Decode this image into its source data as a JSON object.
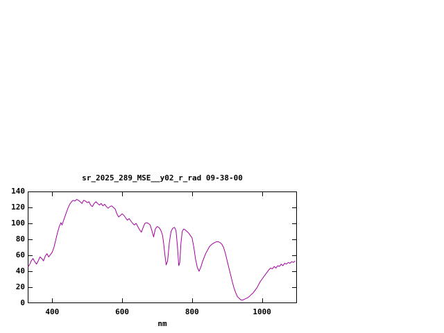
{
  "page": {
    "background": "#ffffff"
  },
  "chart_data": {
    "type": "line",
    "title": "sr_2025_289_MSE__y02_r_rad 09-38-00",
    "xlabel": "nm",
    "ylabel": "",
    "xlim": [
      330,
      1100
    ],
    "ylim": [
      0,
      140
    ],
    "xticks": [
      400,
      600,
      800,
      1000
    ],
    "yticks": [
      0,
      20,
      40,
      60,
      80,
      100,
      120,
      140
    ],
    "grid": false,
    "legend": "none",
    "line_color": "#a000a0",
    "border_color": "#000000",
    "series": [
      {
        "name": "sr_2025_289_MSE__y02_r_rad",
        "points": [
          [
            330,
            45
          ],
          [
            335,
            48
          ],
          [
            340,
            53
          ],
          [
            345,
            56
          ],
          [
            350,
            52
          ],
          [
            355,
            49
          ],
          [
            360,
            53
          ],
          [
            365,
            58
          ],
          [
            370,
            56
          ],
          [
            375,
            53
          ],
          [
            380,
            59
          ],
          [
            385,
            62
          ],
          [
            390,
            58
          ],
          [
            395,
            61
          ],
          [
            400,
            64
          ],
          [
            405,
            70
          ],
          [
            410,
            79
          ],
          [
            415,
            88
          ],
          [
            420,
            96
          ],
          [
            425,
            101
          ],
          [
            428,
            98
          ],
          [
            432,
            103
          ],
          [
            436,
            108
          ],
          [
            440,
            113
          ],
          [
            445,
            119
          ],
          [
            450,
            124
          ],
          [
            455,
            127
          ],
          [
            460,
            129
          ],
          [
            465,
            128
          ],
          [
            470,
            130
          ],
          [
            475,
            129
          ],
          [
            480,
            127
          ],
          [
            485,
            125
          ],
          [
            490,
            129
          ],
          [
            495,
            128
          ],
          [
            500,
            126
          ],
          [
            505,
            127
          ],
          [
            510,
            123
          ],
          [
            515,
            121
          ],
          [
            520,
            125
          ],
          [
            525,
            127
          ],
          [
            530,
            125
          ],
          [
            535,
            123
          ],
          [
            540,
            125
          ],
          [
            545,
            122
          ],
          [
            550,
            124
          ],
          [
            555,
            121
          ],
          [
            560,
            119
          ],
          [
            565,
            121
          ],
          [
            570,
            122
          ],
          [
            575,
            120
          ],
          [
            580,
            118
          ],
          [
            585,
            112
          ],
          [
            590,
            108
          ],
          [
            595,
            110
          ],
          [
            600,
            112
          ],
          [
            605,
            110
          ],
          [
            610,
            107
          ],
          [
            615,
            104
          ],
          [
            620,
            106
          ],
          [
            625,
            103
          ],
          [
            630,
            100
          ],
          [
            635,
            98
          ],
          [
            640,
            100
          ],
          [
            645,
            96
          ],
          [
            650,
            92
          ],
          [
            655,
            89
          ],
          [
            660,
            95
          ],
          [
            665,
            100
          ],
          [
            670,
            101
          ],
          [
            675,
            100
          ],
          [
            680,
            98
          ],
          [
            685,
            91
          ],
          [
            690,
            83
          ],
          [
            695,
            93
          ],
          [
            700,
            96
          ],
          [
            705,
            95
          ],
          [
            710,
            92
          ],
          [
            715,
            86
          ],
          [
            718,
            78
          ],
          [
            722,
            62
          ],
          [
            726,
            48
          ],
          [
            730,
            53
          ],
          [
            735,
            76
          ],
          [
            740,
            90
          ],
          [
            745,
            94
          ],
          [
            750,
            95
          ],
          [
            754,
            91
          ],
          [
            758,
            72
          ],
          [
            762,
            47
          ],
          [
            765,
            51
          ],
          [
            768,
            74
          ],
          [
            772,
            90
          ],
          [
            776,
            93
          ],
          [
            780,
            92
          ],
          [
            785,
            90
          ],
          [
            790,
            88
          ],
          [
            795,
            85
          ],
          [
            800,
            82
          ],
          [
            805,
            70
          ],
          [
            810,
            55
          ],
          [
            815,
            45
          ],
          [
            820,
            40
          ],
          [
            825,
            45
          ],
          [
            830,
            52
          ],
          [
            835,
            58
          ],
          [
            840,
            63
          ],
          [
            845,
            67
          ],
          [
            850,
            71
          ],
          [
            855,
            73
          ],
          [
            860,
            75
          ],
          [
            865,
            76
          ],
          [
            870,
            77
          ],
          [
            875,
            77
          ],
          [
            880,
            76
          ],
          [
            885,
            74
          ],
          [
            890,
            70
          ],
          [
            895,
            63
          ],
          [
            900,
            54
          ],
          [
            905,
            45
          ],
          [
            910,
            36
          ],
          [
            915,
            27
          ],
          [
            920,
            19
          ],
          [
            925,
            13
          ],
          [
            930,
            8
          ],
          [
            935,
            6
          ],
          [
            940,
            4
          ],
          [
            945,
            4
          ],
          [
            950,
            5
          ],
          [
            955,
            6
          ],
          [
            960,
            7
          ],
          [
            965,
            9
          ],
          [
            970,
            11
          ],
          [
            975,
            13
          ],
          [
            980,
            16
          ],
          [
            985,
            19
          ],
          [
            990,
            23
          ],
          [
            995,
            27
          ],
          [
            1000,
            30
          ],
          [
            1005,
            33
          ],
          [
            1010,
            36
          ],
          [
            1015,
            39
          ],
          [
            1020,
            42
          ],
          [
            1025,
            44
          ],
          [
            1030,
            43
          ],
          [
            1035,
            46
          ],
          [
            1040,
            44
          ],
          [
            1045,
            47
          ],
          [
            1050,
            46
          ],
          [
            1055,
            49
          ],
          [
            1060,
            47
          ],
          [
            1065,
            50
          ],
          [
            1070,
            49
          ],
          [
            1075,
            51
          ],
          [
            1080,
            50
          ],
          [
            1085,
            52
          ],
          [
            1090,
            51
          ],
          [
            1095,
            53
          ]
        ]
      }
    ]
  }
}
